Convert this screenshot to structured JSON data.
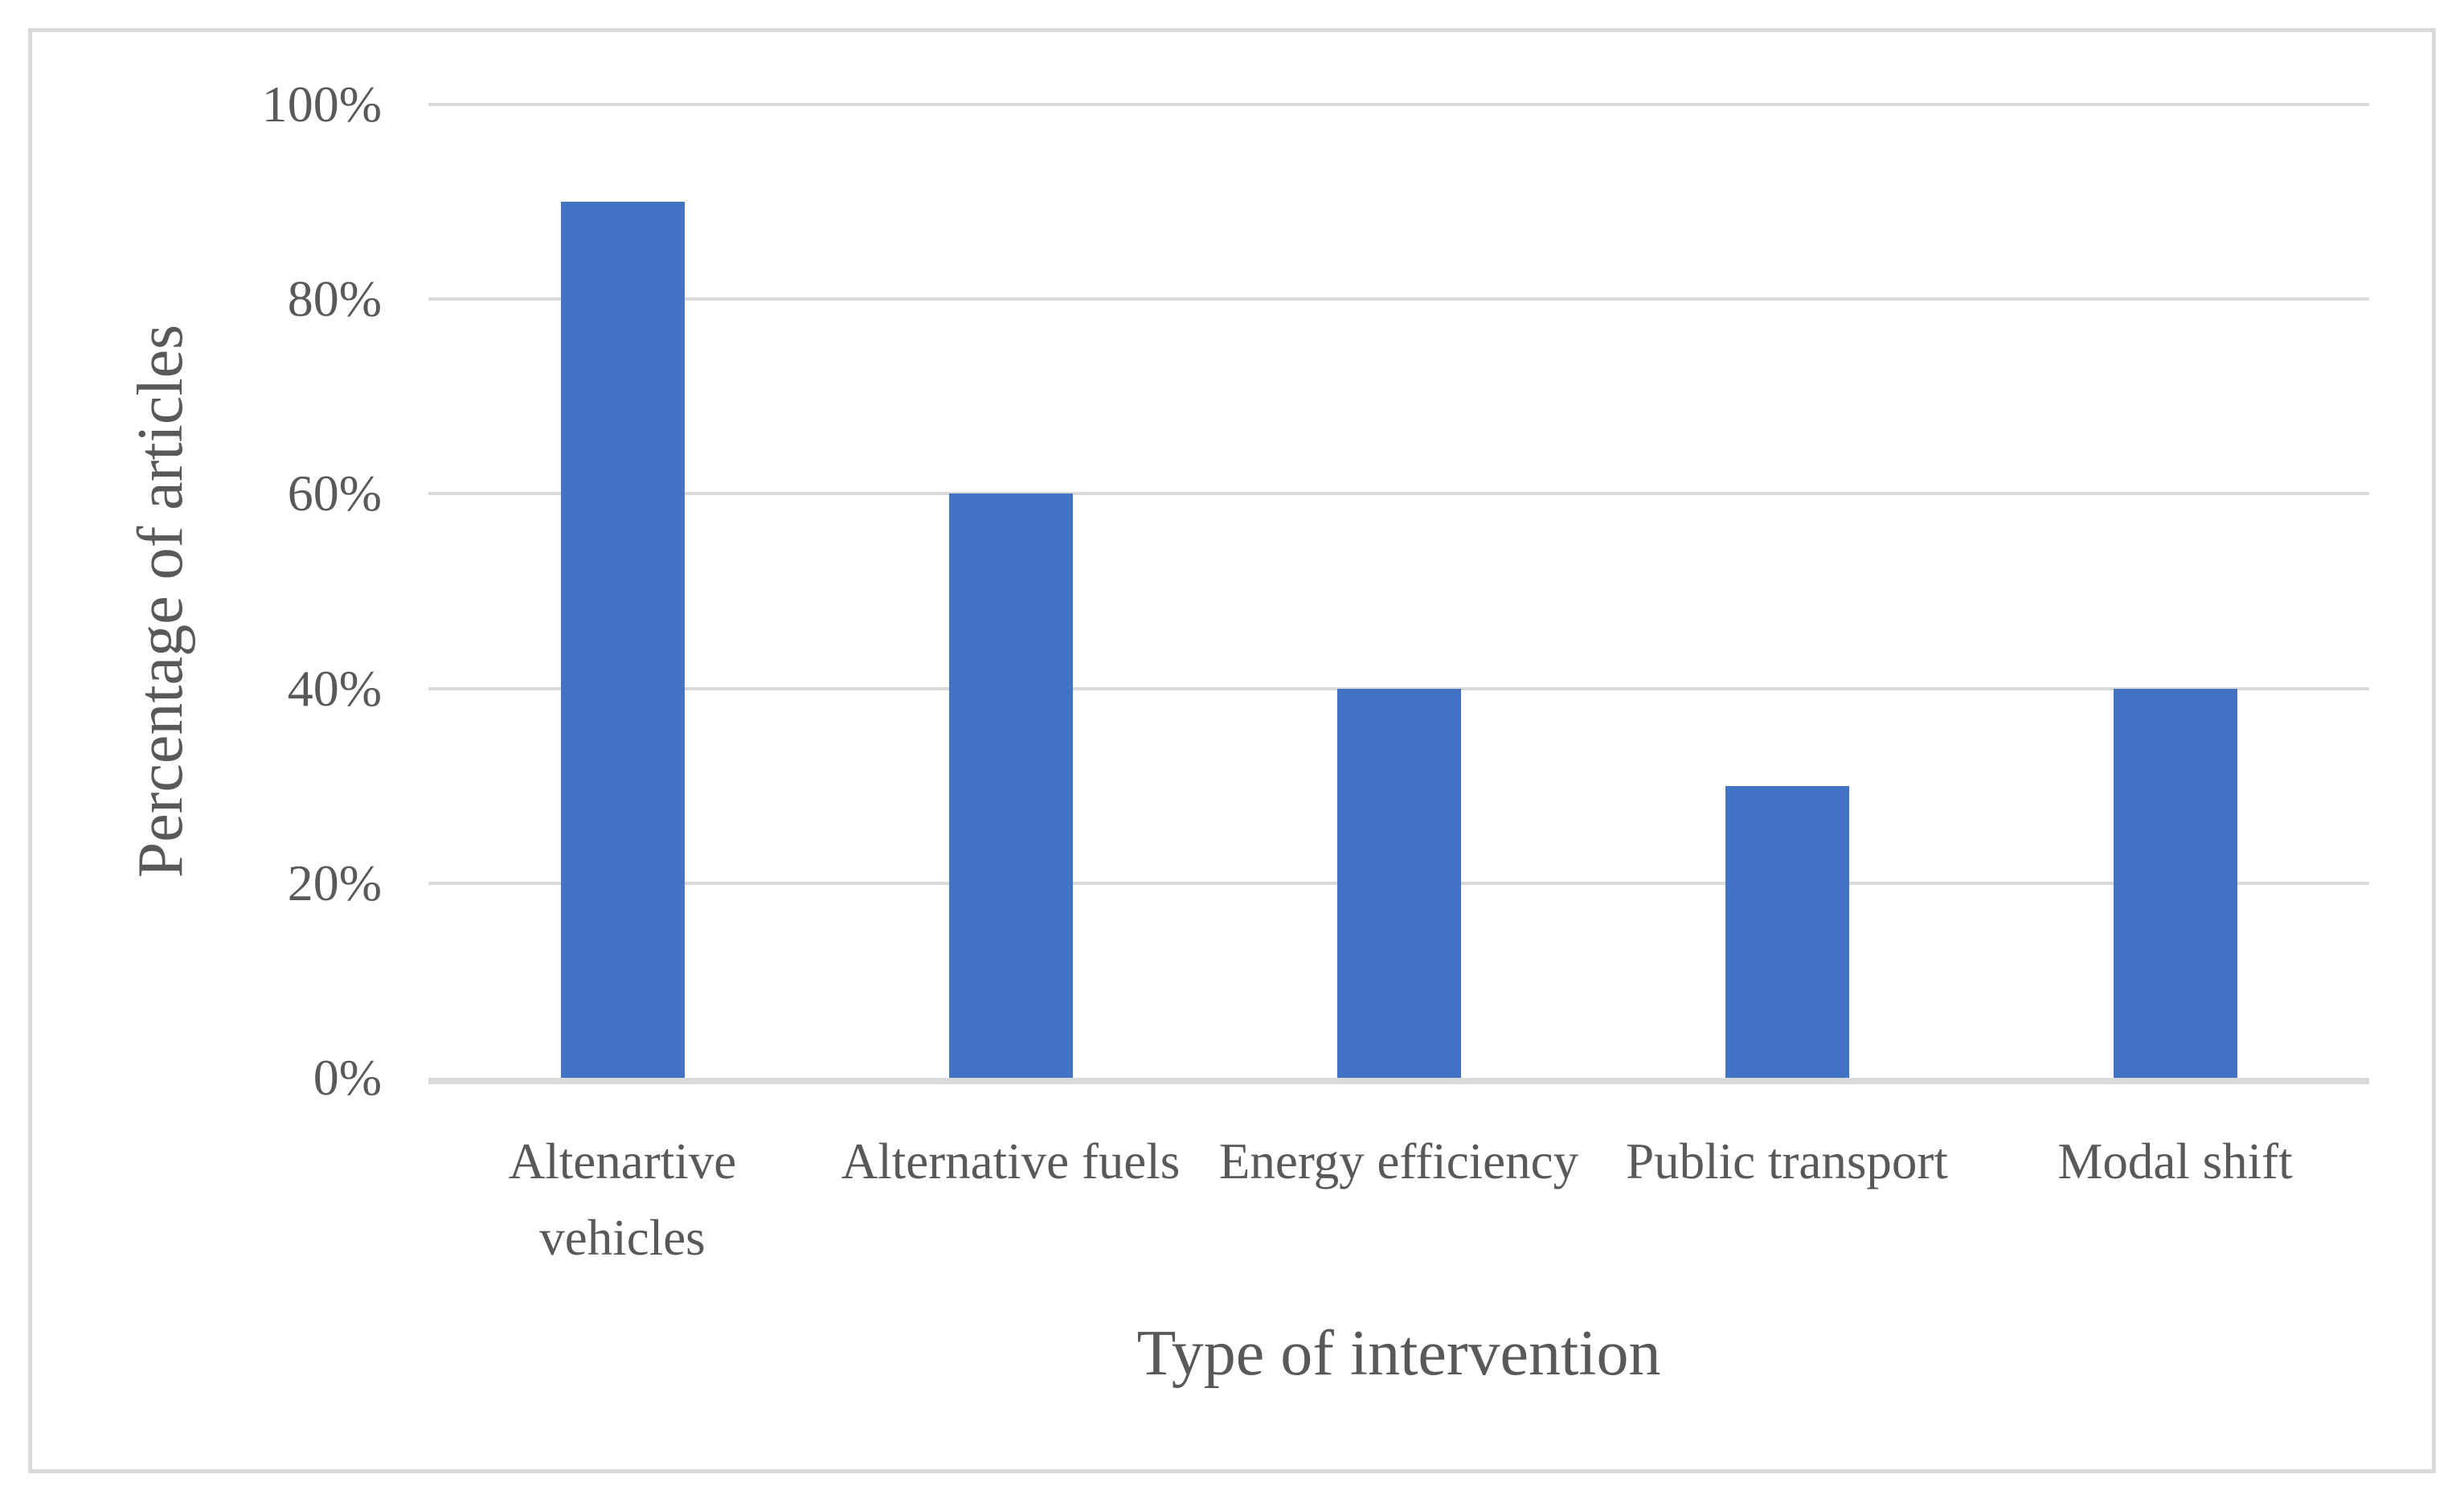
{
  "figure": {
    "background_color": "#ffffff",
    "border_color": "#d9d9d9",
    "text_color": "#595959"
  },
  "chart_data": {
    "type": "bar",
    "title": "",
    "categories": [
      "Altenartive vehicles",
      "Alternative fuels",
      "Energy efficiency",
      "Public transport",
      "Modal shift"
    ],
    "values": [
      90,
      60,
      40,
      30,
      40
    ],
    "value_unit": "%",
    "xlabel": "Type of intervention",
    "ylabel": "Percentage of articles",
    "ylim": [
      0,
      100
    ],
    "ytick_step": 20,
    "ytick_labels": [
      "0%",
      "20%",
      "40%",
      "60%",
      "80%",
      "100%"
    ],
    "grid": true,
    "legend": false,
    "bar_color": "#4472c4",
    "gridline_color": "#d9d9d9",
    "axis_line_color": "#d9d9d9"
  }
}
